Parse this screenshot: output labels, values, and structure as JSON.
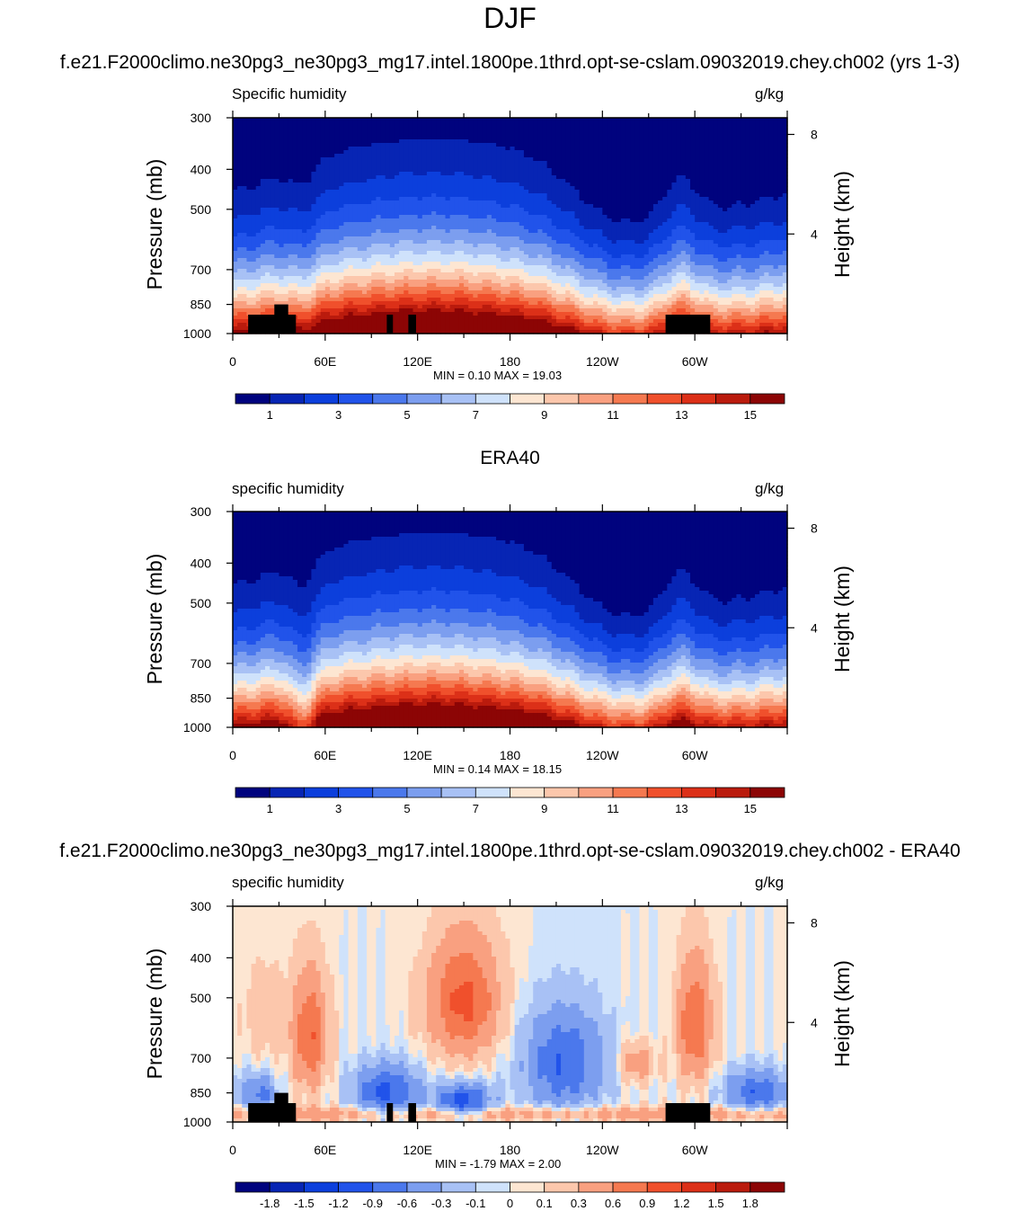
{
  "figure": {
    "season_title": "DJF",
    "model_case_title": "f.e21.F2000climo.ne30pg3_ne30pg3_mg17.intel.1800pe.1thrd.opt-se-cslam.09032019.chey.ch002 (yrs 1-3)",
    "obs_title": "ERA40",
    "diff_title": "f.e21.F2000climo.ne30pg3_ne30pg3_mg17.intel.1800pe.1thrd.opt-se-cslam.09032019.chey.ch002 - ERA40"
  },
  "chart_data": [
    {
      "type": "heatmap",
      "panel": "model",
      "variable_label": "Specific humidity",
      "units": "g/kg",
      "ylabel": "Pressure (mb)",
      "ylabel_right": "Height (km)",
      "x_ticks": [
        "0",
        "60E",
        "120E",
        "180",
        "120W",
        "60W"
      ],
      "y_ticks": [
        "300",
        "400",
        "500",
        "700",
        "850",
        "1000"
      ],
      "y2_ticks": [
        "8",
        "4"
      ],
      "minmax_text": "MIN =   0.10  MAX =  19.03",
      "colorbar_labels": [
        "1",
        "3",
        "5",
        "7",
        "9",
        "11",
        "13",
        "15"
      ],
      "colorbar_colors": [
        "#00037e",
        "#0725b4",
        "#0c3fdc",
        "#2153ea",
        "#4b78ec",
        "#7c9eef",
        "#a8c1f5",
        "#cfe2fb",
        "#fde6d2",
        "#fcc7ac",
        "#f9a080",
        "#f57950",
        "#f0502c",
        "#dc3018",
        "#ba1b0d",
        "#8c0505"
      ],
      "min": 0.1,
      "max": 19.03,
      "ylim": [
        1000,
        300
      ],
      "xlim": [
        0,
        360
      ]
    },
    {
      "type": "heatmap",
      "panel": "obs",
      "variable_label": "specific humidity",
      "units": "g/kg",
      "ylabel": "Pressure (mb)",
      "ylabel_right": "Height (km)",
      "x_ticks": [
        "0",
        "60E",
        "120E",
        "180",
        "120W",
        "60W"
      ],
      "y_ticks": [
        "300",
        "400",
        "500",
        "700",
        "850",
        "1000"
      ],
      "y2_ticks": [
        "8",
        "4"
      ],
      "minmax_text": "MIN =   0.14  MAX =  18.15",
      "colorbar_labels": [
        "1",
        "3",
        "5",
        "7",
        "9",
        "11",
        "13",
        "15"
      ],
      "colorbar_colors": [
        "#00037e",
        "#0725b4",
        "#0c3fdc",
        "#2153ea",
        "#4b78ec",
        "#7c9eef",
        "#a8c1f5",
        "#cfe2fb",
        "#fde6d2",
        "#fcc7ac",
        "#f9a080",
        "#f57950",
        "#f0502c",
        "#dc3018",
        "#ba1b0d",
        "#8c0505"
      ],
      "min": 0.14,
      "max": 18.15,
      "ylim": [
        1000,
        300
      ],
      "xlim": [
        0,
        360
      ]
    },
    {
      "type": "heatmap",
      "panel": "difference",
      "variable_label": "specific humidity",
      "units": "g/kg",
      "ylabel": "Pressure (mb)",
      "ylabel_right": "Height (km)",
      "x_ticks": [
        "0",
        "60E",
        "120E",
        "180",
        "120W",
        "60W"
      ],
      "y_ticks": [
        "300",
        "400",
        "500",
        "700",
        "850",
        "1000"
      ],
      "y2_ticks": [
        "8",
        "4"
      ],
      "minmax_text": "MIN =  -1.79  MAX =   2.00",
      "colorbar_labels": [
        "-1.8",
        "-1.5",
        "-1.2",
        "-0.9",
        "-0.6",
        "-0.3",
        "-0.1",
        "0",
        "0.1",
        "0.3",
        "0.6",
        "0.9",
        "1.2",
        "1.5",
        "1.8"
      ],
      "colorbar_colors": [
        "#00037e",
        "#0725b4",
        "#0c3fdc",
        "#2153ea",
        "#4b78ec",
        "#7c9eef",
        "#a8c1f5",
        "#cfe2fb",
        "#fde6d2",
        "#fcc7ac",
        "#f9a080",
        "#f57950",
        "#f0502c",
        "#dc3018",
        "#ba1b0d",
        "#8c0505"
      ],
      "min": -1.79,
      "max": 2.0,
      "ylim": [
        1000,
        300
      ],
      "xlim": [
        0,
        360
      ]
    }
  ]
}
